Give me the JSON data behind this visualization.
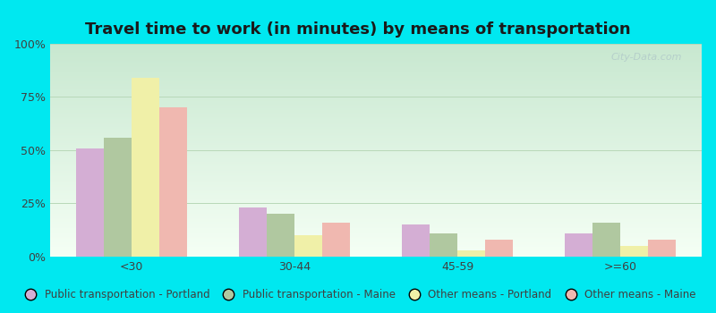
{
  "title": "Travel time to work (in minutes) by means of transportation",
  "categories": [
    "<30",
    "30-44",
    "45-59",
    ">=60"
  ],
  "series": {
    "Public transportation - Portland": [
      51,
      23,
      15,
      11
    ],
    "Public transportation - Maine": [
      56,
      20,
      11,
      16
    ],
    "Other means - Portland": [
      84,
      10,
      3,
      5
    ],
    "Other means - Maine": [
      70,
      16,
      8,
      8
    ]
  },
  "colors": {
    "Public transportation - Portland": "#d4aed4",
    "Public transportation - Maine": "#b0c8a0",
    "Other means - Portland": "#f0f0a8",
    "Other means - Maine": "#f0b8b0"
  },
  "ylim": [
    0,
    100
  ],
  "yticks": [
    0,
    25,
    50,
    75,
    100
  ],
  "ytick_labels": [
    "0%",
    "25%",
    "50%",
    "75%",
    "100%"
  ],
  "plot_bg_top": "#c8e8d0",
  "plot_bg_bottom": "#f0f8f0",
  "outer_background": "#00e8f0",
  "grid_color": "#b8d8b8",
  "title_fontsize": 13,
  "tick_fontsize": 9,
  "legend_fontsize": 8.5,
  "bar_width": 0.17,
  "watermark": "City-Data.com"
}
